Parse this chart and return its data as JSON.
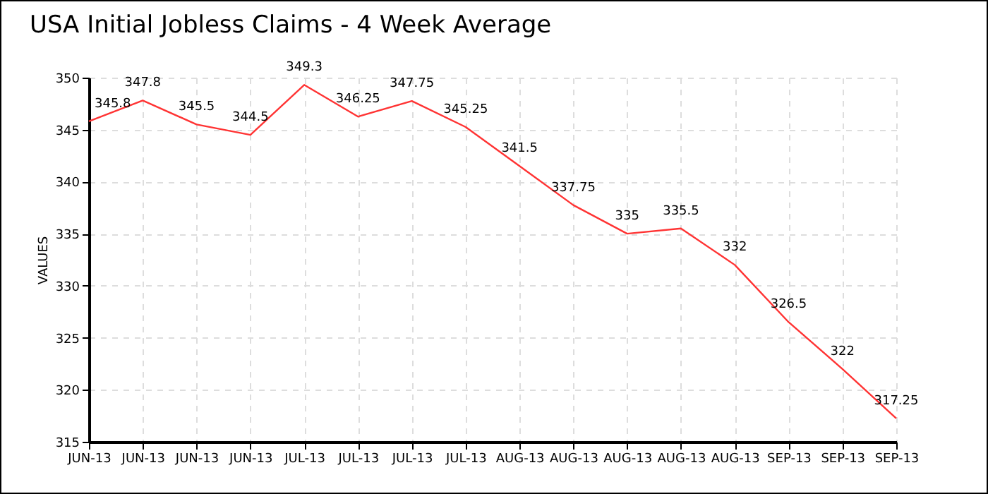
{
  "chart_data": {
    "type": "line",
    "title": "USA Initial Jobless Claims - 4 Week Average",
    "ylabel": "VALUES",
    "categories": [
      "JUN-13",
      "JUN-13",
      "JUN-13",
      "JUN-13",
      "JUL-13",
      "JUL-13",
      "JUL-13",
      "JUL-13",
      "AUG-13",
      "AUG-13",
      "AUG-13",
      "AUG-13",
      "AUG-13",
      "SEP-13",
      "SEP-13",
      "SEP-13"
    ],
    "series": [
      {
        "color": "#ff3333",
        "values": [
          345.8,
          347.8,
          345.5,
          344.5,
          349.3,
          346.25,
          347.75,
          345.25,
          341.5,
          337.75,
          335,
          335.5,
          332,
          326.5,
          322,
          317.25
        ]
      }
    ],
    "ylim": [
      315,
      350
    ],
    "yticks": [
      315,
      320,
      325,
      330,
      335,
      340,
      345,
      350
    ],
    "grid": true,
    "data_labels": true,
    "marker": "none",
    "line_style": "solid"
  }
}
